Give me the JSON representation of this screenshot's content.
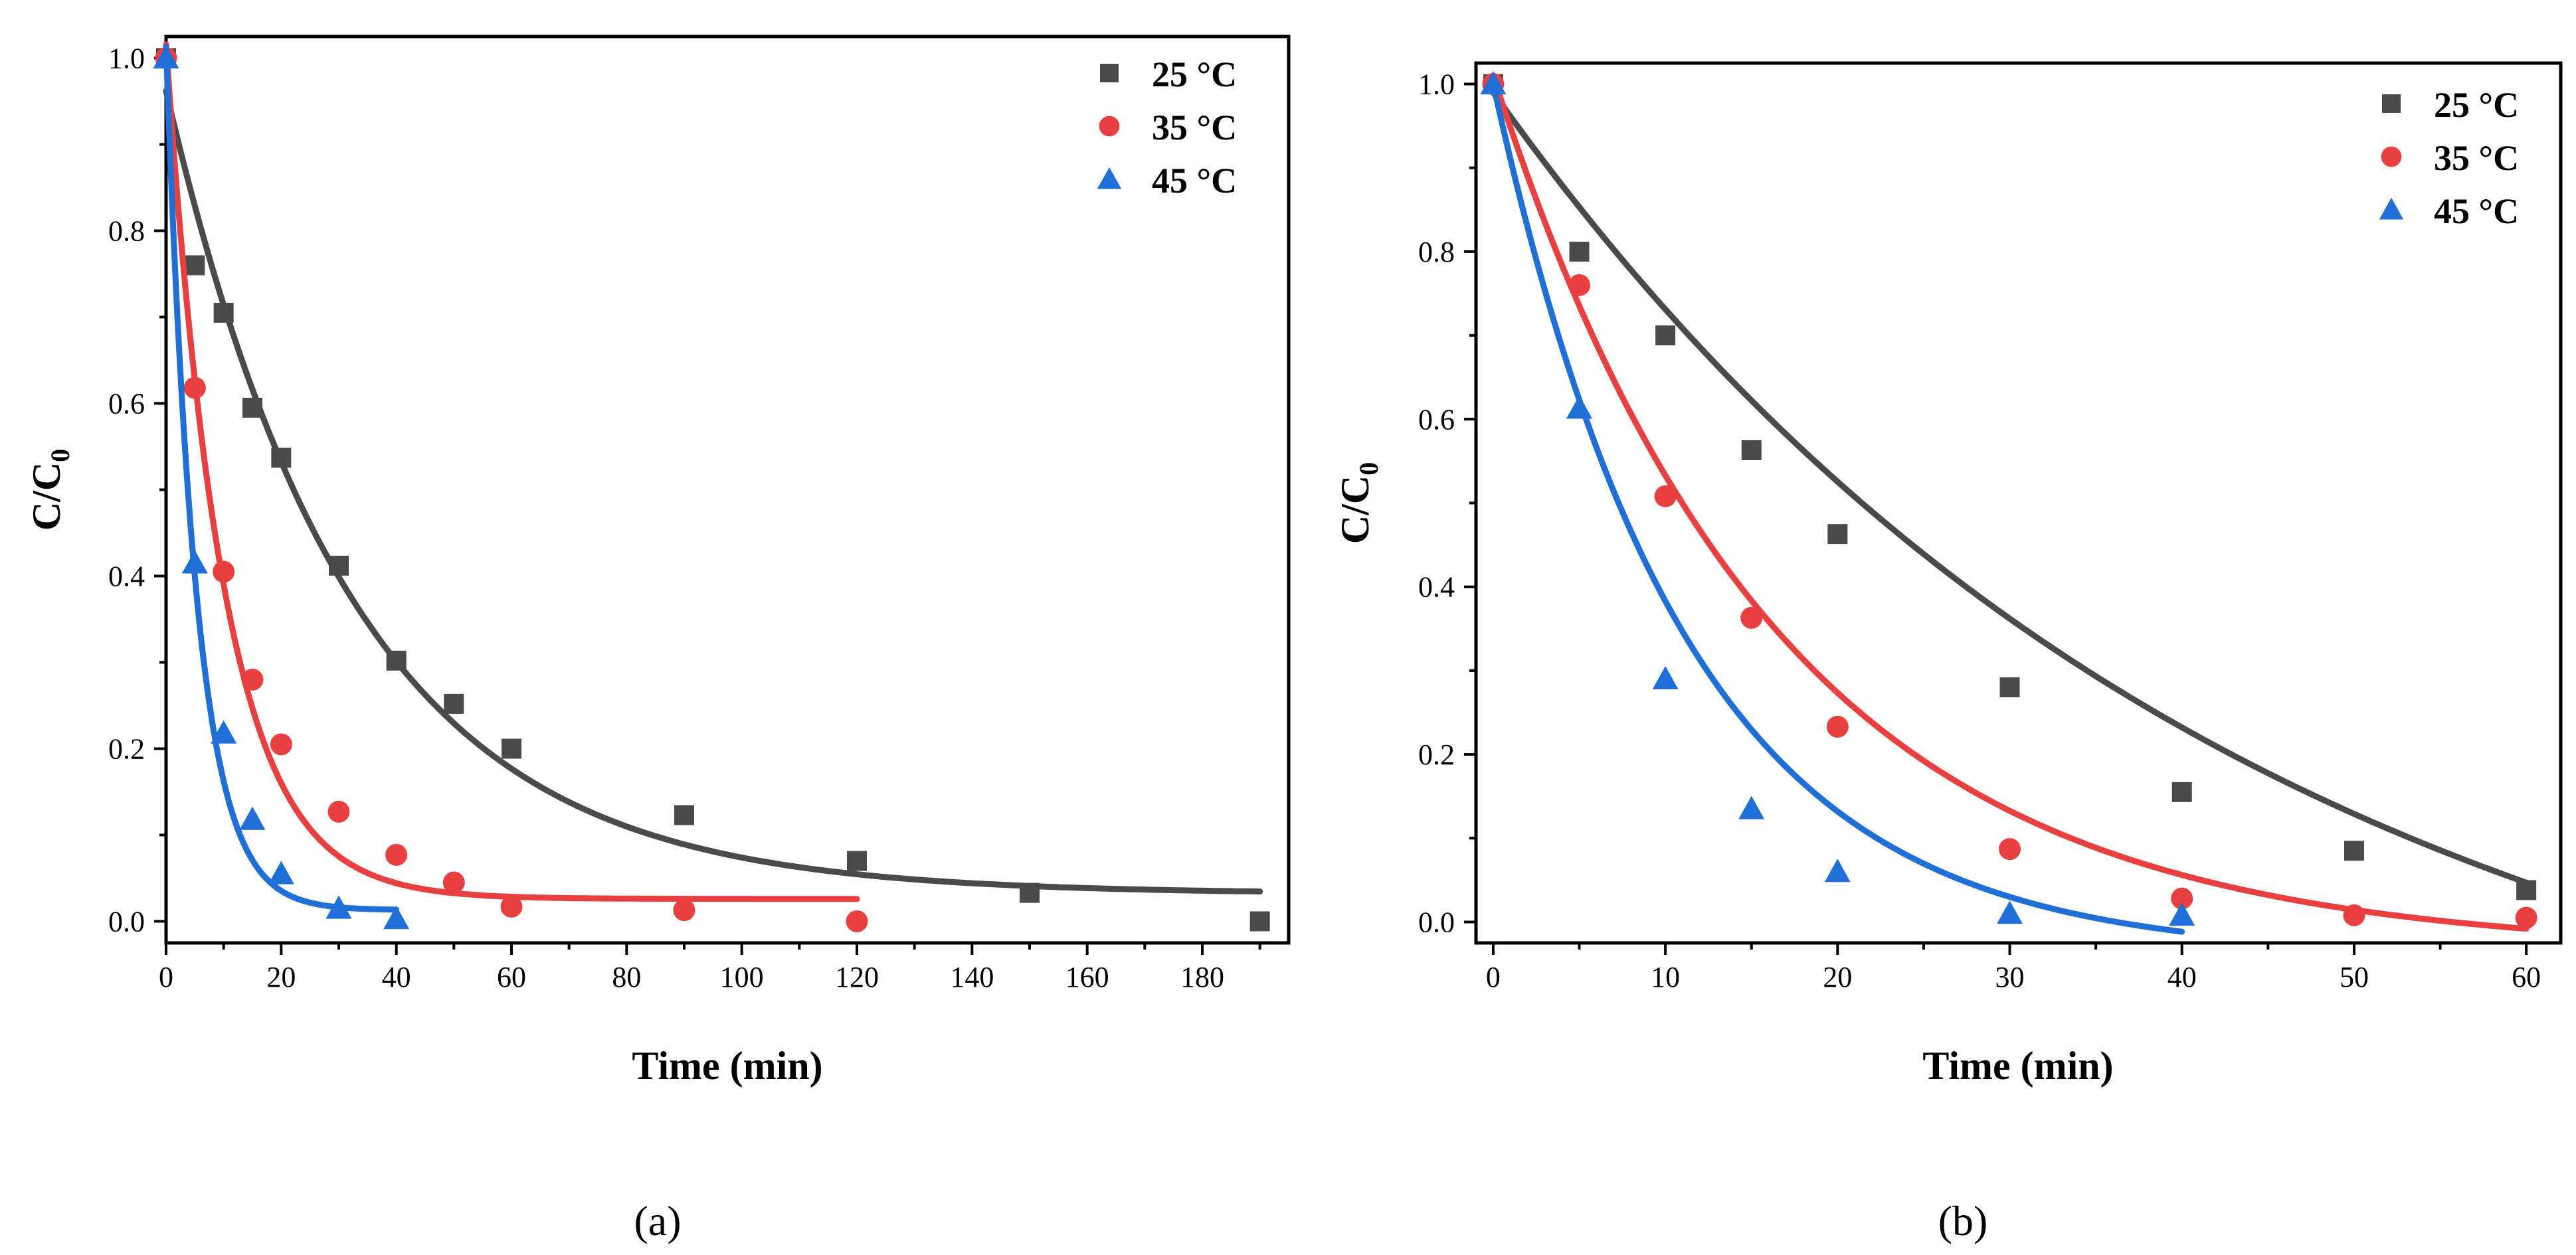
{
  "colors": {
    "25": "#4a4a4a",
    "35": "#e84040",
    "45": "#1f6fd6"
  },
  "chart_data": [
    {
      "type": "scatter",
      "panel_label": "(a)",
      "xlabel": "Time (min)",
      "ylabel_main": "C/C",
      "ylabel_sub": "0",
      "xlim": [
        0,
        195
      ],
      "ylim": [
        -0.025,
        1.025
      ],
      "xticks": [
        0,
        20,
        40,
        60,
        80,
        100,
        120,
        140,
        160,
        180
      ],
      "xminor": [
        10,
        30,
        50,
        70,
        90,
        110,
        130,
        150,
        170,
        190
      ],
      "yticks": [
        0.0,
        0.2,
        0.4,
        0.6,
        0.8,
        1.0
      ],
      "yminor": [
        0.1,
        0.3,
        0.5,
        0.7,
        0.9
      ],
      "ytick_labels": [
        "0.0",
        "0.2",
        "0.4",
        "0.6",
        "0.8",
        "1.0"
      ],
      "legend_position": "top-right",
      "series": [
        {
          "name": "25 °C",
          "color_key": "25",
          "marker": "square",
          "x": [
            0,
            5,
            10,
            15,
            20,
            30,
            40,
            50,
            60,
            90,
            120,
            150,
            190
          ],
          "y": [
            1.0,
            0.76,
            0.705,
            0.595,
            0.537,
            0.412,
            0.302,
            0.252,
            0.2,
            0.123,
            0.07,
            0.033,
            0.0
          ],
          "fit": {
            "a": 0.93,
            "k": 0.031,
            "c": 0.032,
            "xmax": 190
          }
        },
        {
          "name": "35 °C",
          "color_key": "35",
          "marker": "circle",
          "x": [
            0,
            5,
            10,
            15,
            20,
            30,
            40,
            50,
            60,
            90,
            120
          ],
          "y": [
            1.0,
            0.618,
            0.405,
            0.28,
            0.205,
            0.127,
            0.077,
            0.045,
            0.017,
            0.013,
            0.0
          ],
          "fit": {
            "a": 0.99,
            "k": 0.1,
            "c": 0.026,
            "xmax": 120
          }
        },
        {
          "name": "45 °C",
          "color_key": "45",
          "marker": "triangle",
          "x": [
            0,
            5,
            10,
            15,
            20,
            30,
            40
          ],
          "y": [
            1.0,
            0.415,
            0.218,
            0.118,
            0.055,
            0.015,
            0.003
          ],
          "fit": {
            "a": 1.0,
            "k": 0.19,
            "c": 0.013,
            "xmax": 40
          }
        }
      ]
    },
    {
      "type": "scatter",
      "panel_label": "(b)",
      "xlabel": "Time (min)",
      "ylabel_main": "C/C",
      "ylabel_sub": "0",
      "xlim": [
        -1,
        62
      ],
      "ylim": [
        -0.025,
        1.025
      ],
      "xticks": [
        0,
        10,
        20,
        30,
        40,
        50,
        60
      ],
      "xminor": [
        5,
        15,
        25,
        35,
        45,
        55
      ],
      "yticks": [
        0.0,
        0.2,
        0.4,
        0.6,
        0.8,
        1.0
      ],
      "yminor": [
        0.1,
        0.3,
        0.5,
        0.7,
        0.9
      ],
      "ytick_labels": [
        "0.0",
        "0.2",
        "0.4",
        "0.6",
        "0.8",
        "1.0"
      ],
      "legend_position": "top-right",
      "series": [
        {
          "name": "25 °C",
          "color_key": "25",
          "marker": "square",
          "x": [
            0,
            5,
            10,
            15,
            20,
            30,
            40,
            50,
            60
          ],
          "y": [
            1.0,
            0.8,
            0.7,
            0.563,
            0.463,
            0.28,
            0.155,
            0.085,
            0.038
          ],
          "fit": {
            "a": 1.26,
            "k": 0.023,
            "c": -0.27,
            "xmax": 60
          }
        },
        {
          "name": "35 °C",
          "color_key": "35",
          "marker": "circle",
          "x": [
            0,
            5,
            10,
            15,
            20,
            30,
            40,
            50,
            60
          ],
          "y": [
            1.0,
            0.76,
            0.508,
            0.363,
            0.233,
            0.087,
            0.028,
            0.008,
            0.005
          ],
          "fit": {
            "a": 1.045,
            "k": 0.061,
            "c": -0.035,
            "xmax": 60
          }
        },
        {
          "name": "45 °C",
          "color_key": "45",
          "marker": "triangle",
          "x": [
            0,
            5,
            10,
            15,
            20,
            30,
            40
          ],
          "y": [
            1.0,
            0.613,
            0.29,
            0.135,
            0.06,
            0.01,
            0.008
          ],
          "fit": {
            "a": 1.04,
            "k": 0.09,
            "c": -0.04,
            "xmax": 40
          }
        }
      ]
    }
  ]
}
